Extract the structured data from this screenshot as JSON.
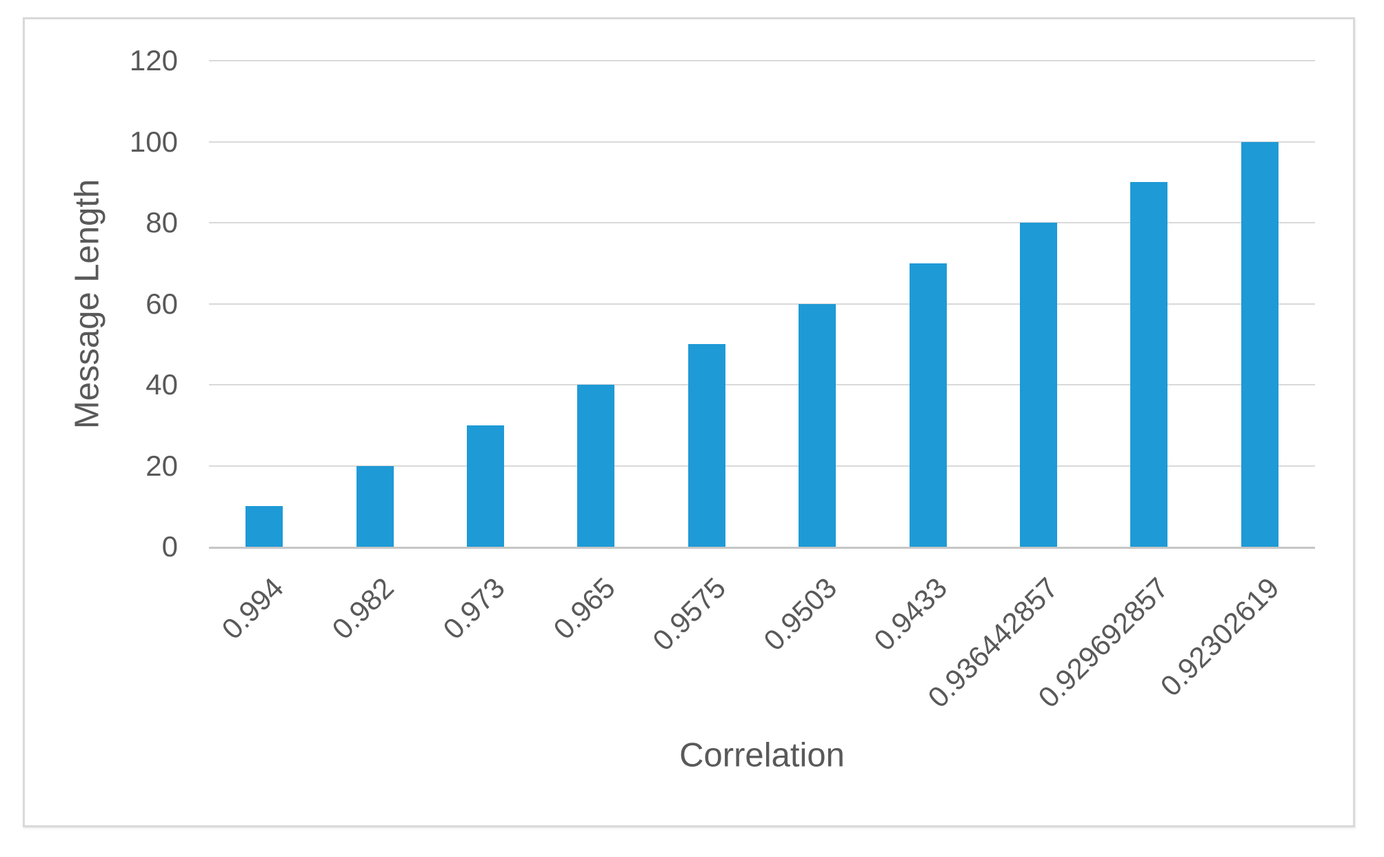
{
  "chart_data": {
    "type": "bar",
    "title": "",
    "categories": [
      "0.994",
      "0.982",
      "0.973",
      "0.965",
      "0.9575",
      "0.9503",
      "0.9433",
      "0.936442857",
      "0.929692857",
      "0.92302619"
    ],
    "values": [
      10,
      20,
      30,
      40,
      50,
      60,
      70,
      80,
      90,
      100
    ],
    "xlabel": "Correlation",
    "ylabel": "Message Length",
    "ylim": [
      0,
      120
    ],
    "yticks": [
      0,
      20,
      40,
      60,
      80,
      100,
      120
    ],
    "grid": "horizontal-on",
    "legend": "none",
    "colors": {
      "bar": "#1E9AD6",
      "gridline": "#D9D9D9",
      "axis_line": "#C6C6C6",
      "text": "#595959",
      "frame_border": "#D9D9D9",
      "background": "#FFFFFF"
    }
  }
}
